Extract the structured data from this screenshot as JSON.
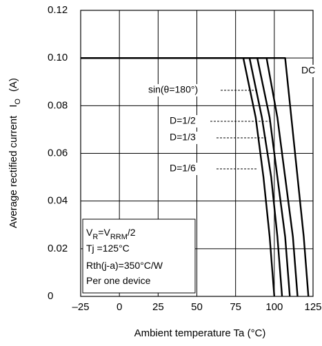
{
  "chart_data": {
    "type": "line",
    "xlabel": "Ambient temperature   Ta   (°C)",
    "ylabel_parts": [
      "Average rectified current",
      "I",
      "O",
      "(A)"
    ],
    "xlim": [
      -25,
      125
    ],
    "xticks": [
      {
        "value": -25,
        "label": "–25"
      },
      0,
      25,
      50,
      75,
      100,
      125
    ],
    "ylim": [
      0,
      0.12
    ],
    "yticks": [
      0,
      0.02,
      0.04,
      0.06,
      {
        "value": 0.1,
        "label": "0.10"
      },
      0.08,
      0.12
    ],
    "grid": true,
    "series": [
      {
        "name": "D=1/6",
        "color": "#000000",
        "x": [
          -25,
          80,
          88,
          93,
          97,
          100
        ],
        "values": [
          0.1,
          0.1,
          0.075,
          0.05,
          0.025,
          0
        ]
      },
      {
        "name": "D=1/3",
        "color": "#000000",
        "x": [
          -25,
          84,
          92,
          98,
          102,
          105
        ],
        "values": [
          0.1,
          0.1,
          0.075,
          0.05,
          0.025,
          0
        ]
      },
      {
        "name": "D=1/2",
        "color": "#000000",
        "x": [
          -25,
          89,
          97,
          102,
          107,
          110
        ],
        "values": [
          0.1,
          0.1,
          0.075,
          0.05,
          0.025,
          0
        ]
      },
      {
        "name": "sin(θ=180°)",
        "color": "#000000",
        "x": [
          -25,
          95,
          102,
          107,
          112,
          115
        ],
        "values": [
          0.1,
          0.1,
          0.075,
          0.05,
          0.025,
          0
        ]
      },
      {
        "name": "DC",
        "color": "#000000",
        "x": [
          -25,
          107,
          111,
          115,
          119,
          122
        ],
        "values": [
          0.1,
          0.1,
          0.075,
          0.05,
          0.025,
          0
        ]
      }
    ],
    "conditions": [
      [
        {
          "text": "V"
        },
        {
          "text": "R",
          "sub": true
        },
        {
          "text": "=V"
        },
        {
          "text": "RRM",
          "sub": true
        },
        {
          "text": "/2"
        }
      ],
      [
        {
          "text": "Tj =125°C"
        }
      ],
      [
        {
          "text": "Rth(j-a)=350°C/W"
        }
      ],
      [
        {
          "text": "Per one device"
        }
      ]
    ]
  }
}
